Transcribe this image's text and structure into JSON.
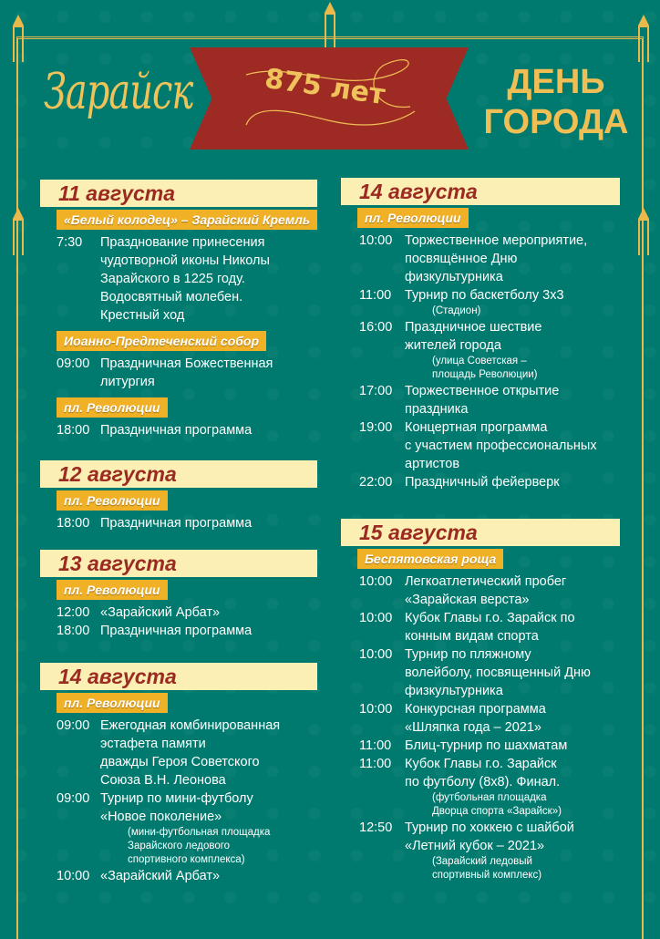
{
  "header": {
    "logo": "Зарайск",
    "anniversary": "875 лет",
    "title_line1": "ДЕНЬ",
    "title_line2": "ГОРОДА"
  },
  "colors": {
    "background": "#007a6e",
    "gold": "#efbf55",
    "ribbon": "#9e2b23",
    "date_bar": "#fcefb4",
    "date_text": "#9b2a22",
    "venue_bar": "#f1b127"
  },
  "blocks": [
    {
      "column": "left",
      "date": "11 августа",
      "sections": [
        {
          "venue": "«Белый колодец» – Зарайский Кремль",
          "events": [
            {
              "time": "7:30",
              "lines": [
                "Празднование принесения",
                "чудотворной иконы Николы",
                "Зарайского в 1225 году.",
                "Водосвятный молебен.",
                "Крестный ход"
              ],
              "note": []
            }
          ]
        },
        {
          "venue": "Иоанно-Предтеченский собор",
          "events": [
            {
              "time": "09:00",
              "lines": [
                "Праздничная Божественная",
                "литургия"
              ],
              "note": []
            }
          ]
        },
        {
          "venue": "пл. Революции",
          "events": [
            {
              "time": "18:00",
              "lines": [
                "Праздничная программа"
              ],
              "note": []
            }
          ]
        }
      ]
    },
    {
      "column": "left",
      "date": "12 августа",
      "sections": [
        {
          "venue": "пл. Революции",
          "events": [
            {
              "time": "18:00",
              "lines": [
                "Праздничная программа"
              ],
              "note": []
            }
          ]
        }
      ]
    },
    {
      "column": "left",
      "date": "13 августа",
      "sections": [
        {
          "venue": "пл. Революции",
          "events": [
            {
              "time": "12:00",
              "lines": [
                "«Зарайский Арбат»"
              ],
              "note": []
            },
            {
              "time": "18:00",
              "lines": [
                "Праздничная программа"
              ],
              "note": []
            }
          ]
        }
      ]
    },
    {
      "column": "left",
      "date": "14 августа",
      "sections": [
        {
          "venue": "пл. Революции",
          "events": [
            {
              "time": "09:00",
              "lines": [
                "Ежегодная комбинированная",
                "эстафета памяти",
                "дважды Героя Советского",
                "Союза В.Н. Леонова"
              ],
              "note": []
            },
            {
              "time": "09:00",
              "lines": [
                "Турнир по мини-футболу",
                "«Новое поколение»"
              ],
              "note": [
                "(мини-футбольная площадка",
                "Зарайского ледового",
                "спортивного комплекса)"
              ]
            },
            {
              "time": "10:00",
              "lines": [
                "«Зарайский Арбат»"
              ],
              "note": []
            }
          ]
        }
      ]
    },
    {
      "column": "right",
      "date": "14 августа",
      "sections": [
        {
          "venue": "пл. Революции",
          "events": [
            {
              "time": "10:00",
              "lines": [
                "Торжественное мероприятие,",
                "посвящённое Дню",
                "физкультурника"
              ],
              "note": []
            },
            {
              "time": "11:00",
              "lines": [
                "Турнир по баскетболу 3х3"
              ],
              "note": [
                "(Стадион)"
              ]
            },
            {
              "time": "16:00",
              "lines": [
                "Праздничное шествие",
                "жителей города"
              ],
              "note": [
                "(улица Советская –",
                "площадь Революции)"
              ]
            },
            {
              "time": "17:00",
              "lines": [
                "Торжественное открытие",
                "праздника"
              ],
              "note": []
            },
            {
              "time": "19:00",
              "lines": [
                "Концертная программа",
                "с участием профессиональных",
                "артистов"
              ],
              "note": []
            },
            {
              "time": "22:00",
              "lines": [
                "Праздничный фейерверк"
              ],
              "note": []
            }
          ]
        }
      ]
    },
    {
      "column": "right",
      "date": "15 августа",
      "sections": [
        {
          "venue": "Беспятовская роща",
          "events": [
            {
              "time": "10:00",
              "lines": [
                "Легкоатлетический пробег",
                "«Зарайская верста»"
              ],
              "note": []
            },
            {
              "time": "10:00",
              "lines": [
                "Кубок Главы г.о. Зарайск по",
                "конным видам спорта"
              ],
              "note": []
            },
            {
              "time": "10:00",
              "lines": [
                "Турнир по пляжному",
                "волейболу, посвященный Дню",
                "физкультурника"
              ],
              "note": []
            },
            {
              "time": "10:00",
              "lines": [
                "Конкурсная программа",
                "«Шляпка года – 2021»"
              ],
              "note": []
            },
            {
              "time": "11:00",
              "lines": [
                "Блиц-турнир по шахматам"
              ],
              "note": []
            },
            {
              "time": "11:00",
              "lines": [
                "Кубок Главы г.о. Зарайск",
                "по футболу (8х8). Финал."
              ],
              "note": [
                "(футбольная площадка",
                "Дворца спорта «Зарайск»)"
              ]
            },
            {
              "time": "12:50",
              "lines": [
                "Турнир по хоккею с шайбой",
                "«Летний кубок – 2021»"
              ],
              "note": [
                "(Зарайский ледовый",
                "спортивный комплекс)"
              ]
            }
          ]
        }
      ]
    }
  ]
}
